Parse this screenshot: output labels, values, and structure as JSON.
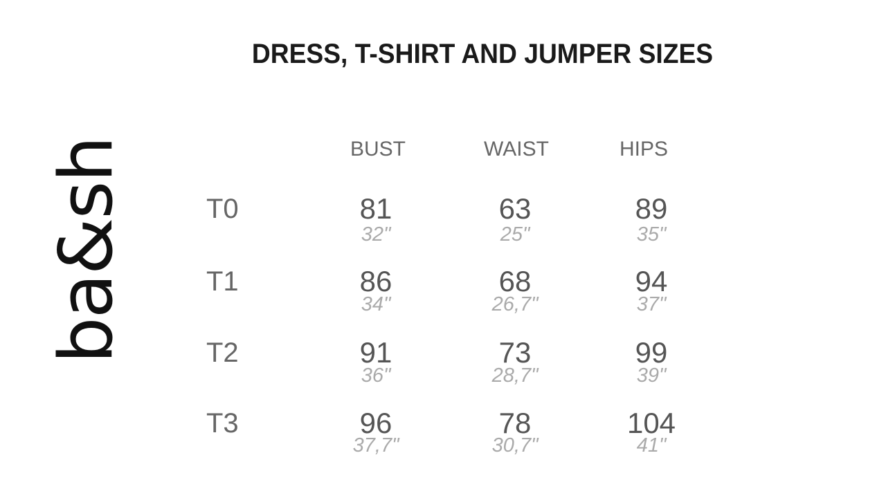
{
  "logo": "ba&sh",
  "title": "DRESS, T-SHIRT AND JUMPER SIZES",
  "columns": [
    "BUST",
    "WAIST",
    "HIPS"
  ],
  "rows": [
    {
      "size": "T0",
      "bust_cm": "81",
      "bust_in": "32\"",
      "waist_cm": "63",
      "waist_in": "25\"",
      "hips_cm": "89",
      "hips_in": "35\""
    },
    {
      "size": "T1",
      "bust_cm": "86",
      "bust_in": "34\"",
      "waist_cm": "68",
      "waist_in": "26,7\"",
      "hips_cm": "94",
      "hips_in": "37\""
    },
    {
      "size": "T2",
      "bust_cm": "91",
      "bust_in": "36\"",
      "waist_cm": "73",
      "waist_in": "28,7\"",
      "hips_cm": "99",
      "hips_in": "39\""
    },
    {
      "size": "T3",
      "bust_cm": "96",
      "bust_in": "37,7\"",
      "waist_cm": "78",
      "waist_in": "30,7\"",
      "hips_cm": "104",
      "hips_in": "41\""
    }
  ]
}
